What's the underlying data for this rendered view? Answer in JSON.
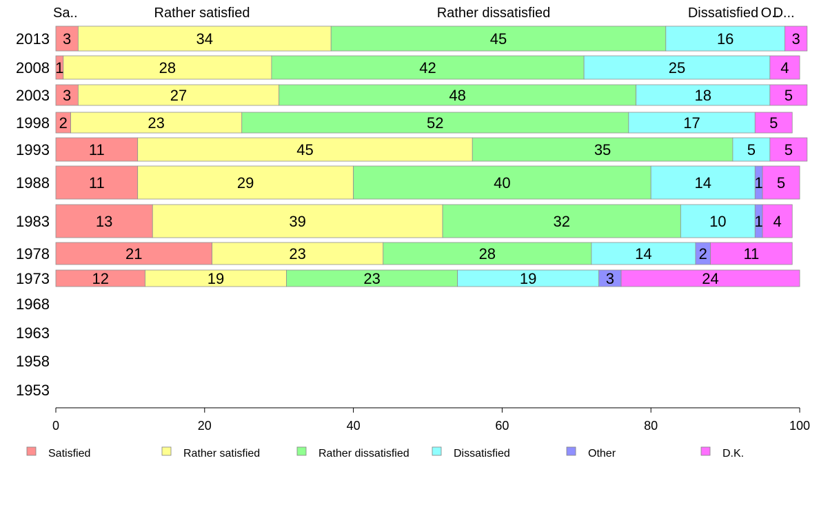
{
  "chart_data": {
    "type": "bar",
    "orientation": "horizontal",
    "stacked": true,
    "categories": [
      "2013",
      "2008",
      "2003",
      "1998",
      "1993",
      "1988",
      "1983",
      "1978",
      "1973",
      "1968",
      "1963",
      "1958",
      "1953"
    ],
    "series": [
      {
        "name": "Satisfied",
        "color": "#ff9090",
        "values": [
          3,
          1,
          3,
          2,
          11,
          11,
          13,
          21,
          12,
          null,
          null,
          null,
          null
        ]
      },
      {
        "name": "Rather satisfied",
        "color": "#ffff90",
        "values": [
          34,
          28,
          27,
          23,
          45,
          29,
          39,
          23,
          19,
          null,
          null,
          null,
          null
        ]
      },
      {
        "name": "Rather dissatisfied",
        "color": "#90ff90",
        "values": [
          45,
          42,
          48,
          52,
          35,
          40,
          32,
          28,
          23,
          null,
          null,
          null,
          null
        ]
      },
      {
        "name": "Dissatisfied",
        "color": "#90ffff",
        "values": [
          16,
          25,
          18,
          17,
          5,
          14,
          10,
          14,
          19,
          null,
          null,
          null,
          null
        ]
      },
      {
        "name": "Other",
        "color": "#9090ff",
        "values": [
          0,
          0,
          0,
          0,
          0,
          1,
          1,
          2,
          3,
          null,
          null,
          null,
          null
        ]
      },
      {
        "name": "D.K.",
        "color": "#ff70ff",
        "values": [
          3,
          4,
          5,
          5,
          5,
          5,
          4,
          11,
          24,
          null,
          null,
          null,
          null
        ]
      }
    ],
    "top_labels": [
      "Sa..",
      "Rather satisfied",
      "Rather dissatisfied",
      "Dissatisfied",
      "O..",
      "D..."
    ],
    "xticks": [
      "0",
      "20",
      "40",
      "60",
      "80",
      "100"
    ],
    "xlim": [
      0,
      100
    ],
    "grid": false,
    "legend_position": "bottom"
  }
}
